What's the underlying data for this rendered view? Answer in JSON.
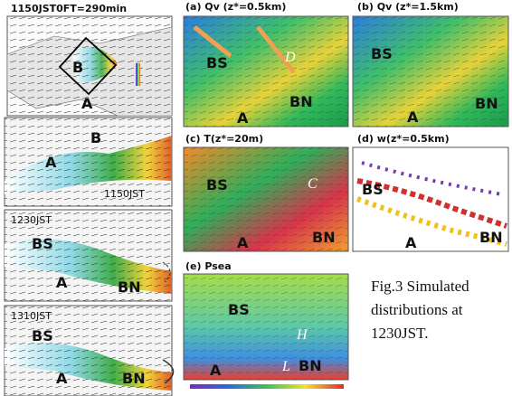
{
  "overview": {
    "title": "1150JST0FT=290min",
    "labels": [
      "B",
      "A"
    ]
  },
  "time_panels": [
    {
      "time": "1150JST",
      "labels": [
        "B",
        "A"
      ]
    },
    {
      "time": "1230JST",
      "labels": [
        "BS",
        "A",
        "BN"
      ]
    },
    {
      "time": "1310JST",
      "labels": [
        "BS",
        "A",
        "BN"
      ]
    }
  ],
  "panels": [
    {
      "title": "(a) Qv (z*=0.5km)",
      "labels": [
        "BS",
        "D",
        "BN",
        "A"
      ]
    },
    {
      "title": "(b) Qv (z*=1.5km)",
      "labels": [
        "BS",
        "A",
        "BN"
      ]
    },
    {
      "title": "(c) T(z*=20m)",
      "labels": [
        "BS",
        "C",
        "A",
        "BN"
      ]
    },
    {
      "title": "(d) w(z*=0.5km)",
      "labels": [
        "BS",
        "A",
        "BN"
      ]
    },
    {
      "title": "(e) Psea",
      "labels": [
        "BS",
        "H",
        "L",
        "BN",
        "A"
      ]
    }
  ],
  "caption": [
    "Fig.3 Simulated",
    "distributions at",
    "1230JST."
  ]
}
